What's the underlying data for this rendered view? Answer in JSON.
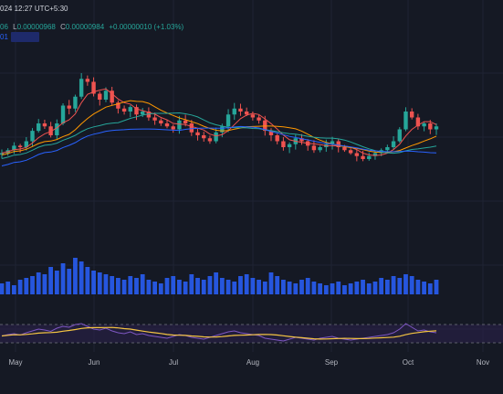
{
  "legend": {
    "timestamp": "024 12:27 UTC+5:30",
    "open_tail": "06",
    "low_label": "L",
    "low_value": "0.00000968",
    "close_label": "C",
    "close_value": "0.00000984",
    "change": "+0.00000010 (+1.03%)",
    "ma_tail": "01"
  },
  "colors": {
    "background": "#151924",
    "up": "#26a69a",
    "down": "#ef5350",
    "volume": "#2962ff",
    "ma_fast": "#ef5350",
    "ma_mid": "#ff9800",
    "ma_slow_teal": "#26a69a",
    "ma_slow_blue": "#2962ff",
    "rsi_line": "#7e57c2",
    "rsi_signal": "#f5c542"
  },
  "chart_data": {
    "type": "candlestick",
    "x_ticks": [
      "May",
      "Jun",
      "Jul",
      "Aug",
      "Sep",
      "Oct",
      "Nov"
    ],
    "price_path": [
      40,
      42,
      45,
      44,
      48,
      55,
      60,
      58,
      52,
      60,
      72,
      70,
      78,
      90,
      88,
      80,
      76,
      82,
      74,
      70,
      68,
      71,
      66,
      68,
      64,
      62,
      60,
      58,
      56,
      62,
      60,
      54,
      52,
      50,
      48,
      54,
      58,
      66,
      70,
      68,
      66,
      64,
      62,
      55,
      52,
      48,
      44,
      46,
      50,
      48,
      45,
      42,
      44,
      46,
      48,
      44,
      42,
      40,
      38,
      36,
      38,
      40,
      42,
      44,
      48,
      56,
      68,
      64,
      58,
      60,
      56,
      58
    ],
    "volume_path": [
      12,
      14,
      10,
      16,
      18,
      20,
      24,
      22,
      30,
      26,
      34,
      28,
      40,
      36,
      30,
      26,
      24,
      22,
      20,
      18,
      16,
      20,
      18,
      22,
      16,
      14,
      12,
      18,
      20,
      16,
      14,
      22,
      18,
      16,
      20,
      24,
      18,
      16,
      14,
      20,
      22,
      18,
      16,
      14,
      24,
      20,
      16,
      14,
      12,
      16,
      18,
      14,
      12,
      10,
      12,
      14,
      10,
      12,
      14,
      16,
      12,
      14,
      18,
      16,
      20,
      18,
      22,
      20,
      16,
      14,
      12,
      16
    ],
    "rsi_path": [
      45,
      48,
      50,
      47,
      52,
      56,
      60,
      58,
      55,
      62,
      66,
      64,
      70,
      72,
      66,
      60,
      58,
      62,
      56,
      52,
      50,
      54,
      48,
      50,
      46,
      44,
      42,
      40,
      44,
      48,
      46,
      42,
      40,
      38,
      42,
      46,
      50,
      54,
      56,
      52,
      50,
      48,
      46,
      40,
      38,
      36,
      34,
      38,
      42,
      40,
      38,
      36,
      40,
      42,
      44,
      40,
      38,
      36,
      38,
      40,
      42,
      44,
      46,
      48,
      52,
      60,
      72,
      64,
      56,
      58,
      54,
      52
    ],
    "rsi_levels": [
      70,
      30
    ]
  }
}
